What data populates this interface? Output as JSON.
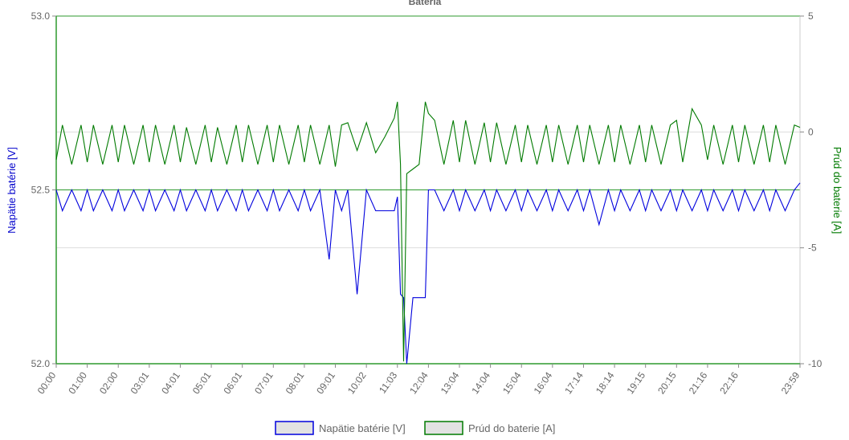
{
  "chart_data": {
    "type": "line",
    "title": "Batéria",
    "x_ticks": [
      "00:00",
      "01:00",
      "02:00",
      "03:01",
      "04:01",
      "05:01",
      "06:01",
      "07:01",
      "08:01",
      "09:01",
      "10:02",
      "11:03",
      "12:04",
      "13:04",
      "14:04",
      "15:04",
      "16:04",
      "17:14",
      "18:14",
      "19:15",
      "20:15",
      "21:16",
      "22:16",
      "23:59"
    ],
    "y_left": {
      "label": "Napätie batérie [V]",
      "min": 52.0,
      "max": 53.0,
      "ticks": [
        "52.0",
        "52.5",
        "53.0"
      ]
    },
    "y_right": {
      "label": "Prúd do baterie [A]",
      "min": -10,
      "max": 5,
      "ticks": [
        "-10",
        "-5",
        "0",
        "5"
      ]
    },
    "grid": true,
    "legend_position": "bottom",
    "series": [
      {
        "name": "Napätie batérie [V]",
        "axis": "left",
        "color": "#0000dd",
        "x": [
          0,
          0.2,
          0.5,
          0.8,
          1,
          1.2,
          1.5,
          1.8,
          2,
          2.2,
          2.5,
          2.8,
          3,
          3.2,
          3.5,
          3.8,
          4,
          4.2,
          4.5,
          4.8,
          5,
          5.2,
          5.5,
          5.8,
          6,
          6.2,
          6.5,
          6.8,
          7,
          7.2,
          7.5,
          7.8,
          8,
          8.2,
          8.5,
          8.8,
          9.0,
          9.2,
          9.4,
          9.7,
          10,
          10.3,
          10.6,
          10.9,
          11.0,
          11.1,
          11.2,
          11.3,
          11.5,
          11.7,
          11.9,
          12.0,
          12.2,
          12.5,
          12.8,
          13,
          13.2,
          13.5,
          13.8,
          14,
          14.2,
          14.5,
          14.8,
          15,
          15.2,
          15.5,
          15.8,
          16,
          16.2,
          16.5,
          16.8,
          17,
          17.2,
          17.5,
          17.8,
          18,
          18.2,
          18.5,
          18.8,
          19,
          19.2,
          19.5,
          19.8,
          20,
          20.2,
          20.5,
          20.8,
          21,
          21.2,
          21.5,
          21.8,
          22,
          22.2,
          22.5,
          22.8,
          23,
          23.2,
          23.5,
          23.8,
          23.98
        ],
        "y": [
          52.5,
          52.44,
          52.5,
          52.44,
          52.5,
          52.44,
          52.5,
          52.44,
          52.5,
          52.44,
          52.5,
          52.44,
          52.5,
          52.44,
          52.5,
          52.44,
          52.5,
          52.44,
          52.5,
          52.44,
          52.5,
          52.44,
          52.5,
          52.44,
          52.5,
          52.44,
          52.5,
          52.44,
          52.5,
          52.44,
          52.5,
          52.44,
          52.5,
          52.44,
          52.5,
          52.3,
          52.5,
          52.44,
          52.5,
          52.2,
          52.5,
          52.44,
          52.44,
          52.44,
          52.48,
          52.2,
          52.19,
          52.0,
          52.19,
          52.19,
          52.19,
          52.5,
          52.5,
          52.44,
          52.5,
          52.44,
          52.5,
          52.44,
          52.5,
          52.44,
          52.5,
          52.44,
          52.5,
          52.44,
          52.5,
          52.44,
          52.5,
          52.44,
          52.5,
          52.44,
          52.5,
          52.44,
          52.5,
          52.4,
          52.5,
          52.44,
          52.5,
          52.44,
          52.5,
          52.44,
          52.5,
          52.44,
          52.5,
          52.44,
          52.5,
          52.44,
          52.5,
          52.44,
          52.5,
          52.44,
          52.5,
          52.44,
          52.5,
          52.44,
          52.5,
          52.44,
          52.5,
          52.44,
          52.5,
          52.52
        ]
      },
      {
        "name": "Prúd do baterie [A]",
        "axis": "right",
        "color": "#007a00",
        "x": [
          0,
          0.2,
          0.5,
          0.8,
          1,
          1.2,
          1.5,
          1.8,
          2,
          2.2,
          2.5,
          2.8,
          3,
          3.2,
          3.5,
          3.8,
          4,
          4.2,
          4.5,
          4.8,
          5,
          5.2,
          5.5,
          5.8,
          6,
          6.2,
          6.5,
          6.8,
          7,
          7.2,
          7.5,
          7.8,
          8,
          8.2,
          8.5,
          8.8,
          9.0,
          9.2,
          9.4,
          9.7,
          10,
          10.3,
          10.6,
          10.9,
          11.0,
          11.1,
          11.2,
          11.3,
          11.5,
          11.7,
          11.9,
          12.0,
          12.2,
          12.5,
          12.8,
          13,
          13.2,
          13.5,
          13.8,
          14,
          14.2,
          14.5,
          14.8,
          15,
          15.2,
          15.5,
          15.8,
          16,
          16.2,
          16.5,
          16.8,
          17,
          17.2,
          17.5,
          17.8,
          18,
          18.2,
          18.5,
          18.8,
          19,
          19.2,
          19.5,
          19.8,
          20,
          20.2,
          20.5,
          20.8,
          21,
          21.2,
          21.5,
          21.8,
          22,
          22.2,
          22.5,
          22.8,
          23,
          23.2,
          23.5,
          23.8,
          23.98
        ],
        "y": [
          -1.2,
          0.3,
          -1.4,
          0.3,
          -1.3,
          0.3,
          -1.4,
          0.3,
          -1.3,
          0.3,
          -1.4,
          0.3,
          -1.3,
          0.3,
          -1.4,
          0.3,
          -1.3,
          0.2,
          -1.4,
          0.3,
          -1.3,
          0.2,
          -1.4,
          0.3,
          -1.3,
          0.3,
          -1.4,
          0.3,
          -1.3,
          0.3,
          -1.4,
          0.3,
          -1.3,
          0.3,
          -1.4,
          0.3,
          -1.5,
          0.3,
          0.4,
          -0.8,
          0.4,
          -0.9,
          -0.2,
          0.6,
          1.3,
          -1.4,
          -9.9,
          -1.8,
          -1.6,
          -1.4,
          1.3,
          0.8,
          0.5,
          -1.4,
          0.5,
          -1.3,
          0.5,
          -1.4,
          0.4,
          -1.3,
          0.4,
          -1.4,
          0.3,
          -1.3,
          0.3,
          -1.4,
          0.3,
          -1.3,
          0.3,
          -1.4,
          0.3,
          -1.3,
          0.3,
          -1.4,
          0.3,
          -1.3,
          0.3,
          -1.4,
          0.3,
          -1.3,
          0.3,
          -1.4,
          0.3,
          0.5,
          -1.3,
          1.0,
          0.3,
          -1.2,
          0.3,
          -1.4,
          0.3,
          -1.3,
          0.3,
          -1.4,
          0.3,
          -1.3,
          0.3,
          -1.4,
          0.3,
          0.2
        ]
      }
    ]
  }
}
